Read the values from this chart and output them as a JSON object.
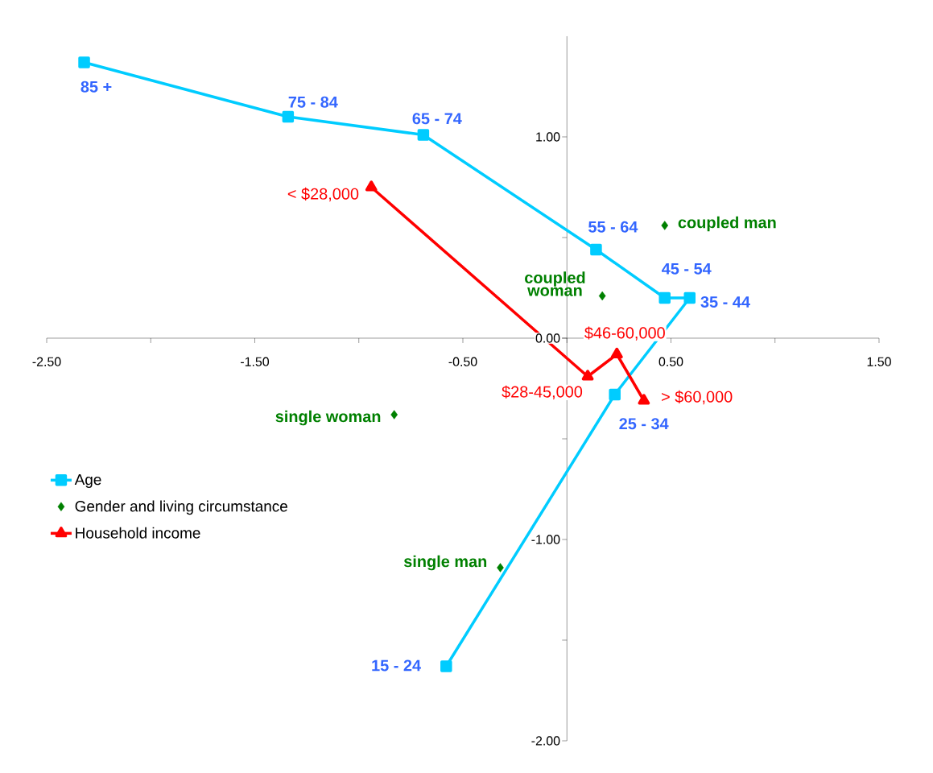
{
  "chart_data": {
    "type": "line",
    "xlim": [
      -2.5,
      1.5
    ],
    "ylim": [
      -2.0,
      1.5
    ],
    "xticks": [
      {
        "value": -2.5,
        "label": "-2.50"
      },
      {
        "value": -2.0,
        "label": null
      },
      {
        "value": -1.5,
        "label": "-1.50"
      },
      {
        "value": -1.0,
        "label": null
      },
      {
        "value": -0.5,
        "label": "-0.50"
      },
      {
        "value": 0.0,
        "label": null
      },
      {
        "value": 0.5,
        "label": "0.50"
      },
      {
        "value": 1.0,
        "label": null
      },
      {
        "value": 1.5,
        "label": "1.50"
      }
    ],
    "yticks": [
      {
        "value": -2.0,
        "label": "-2.00"
      },
      {
        "value": -1.5,
        "label": null
      },
      {
        "value": -1.0,
        "label": "-1.00"
      },
      {
        "value": -0.5,
        "label": null
      },
      {
        "value": 0.0,
        "label": "0.00"
      },
      {
        "value": 0.5,
        "label": null
      },
      {
        "value": 1.0,
        "label": "1.00"
      }
    ],
    "legend": "left",
    "line_style": "solid",
    "series": [
      {
        "name": "Age",
        "marker": "square",
        "color": "#00ccff",
        "x": [
          -2.32,
          -1.34,
          -0.69,
          0.14,
          0.47,
          0.59,
          0.23,
          -0.58
        ],
        "values": [
          1.37,
          1.1,
          1.01,
          0.44,
          0.2,
          0.2,
          -0.28,
          -1.63
        ]
      },
      {
        "name": "Gender and living circumstance",
        "type": "scatter",
        "marker": "diamond",
        "color": "#008000",
        "x": [
          0.47,
          0.17,
          -0.83,
          -0.32
        ],
        "values": [
          0.56,
          0.21,
          -0.38,
          -1.14
        ]
      },
      {
        "name": "Household income",
        "marker": "triangle",
        "color": "#ff0000",
        "x": [
          -0.94,
          0.1,
          0.24,
          0.37
        ],
        "values": [
          0.75,
          -0.19,
          -0.08,
          -0.31
        ]
      }
    ],
    "annotations": [
      {
        "text": "85 +",
        "x": -2.32,
        "y": 1.37
      },
      {
        "text": "75 - 84",
        "x": -1.34,
        "y": 1.1
      },
      {
        "text": "65 - 74",
        "x": -0.69,
        "y": 1.01
      },
      {
        "text": "55 - 64",
        "x": 0.14,
        "y": 0.44
      },
      {
        "text": "45 - 54",
        "x": 0.47,
        "y": 0.2
      },
      {
        "text": "35 - 44",
        "x": 0.59,
        "y": 0.2
      },
      {
        "text": "25 - 34",
        "x": 0.23,
        "y": -0.28
      },
      {
        "text": "15 - 24",
        "x": -0.58,
        "y": -1.63
      },
      {
        "text": "coupled man",
        "x": 0.47,
        "y": 0.56
      },
      {
        "text": "coupled woman",
        "x": 0.17,
        "y": 0.21
      },
      {
        "text": "single woman",
        "x": -0.83,
        "y": -0.38
      },
      {
        "text": "single man",
        "x": -0.32,
        "y": -1.14
      },
      {
        "text": "< $28,000",
        "x": -0.94,
        "y": 0.75
      },
      {
        "text": "$28-45,000",
        "x": 0.1,
        "y": -0.19
      },
      {
        "text": "$46-60,000",
        "x": 0.24,
        "y": -0.08
      },
      {
        "text": "> $60,000",
        "x": 0.37,
        "y": -0.31
      }
    ]
  }
}
